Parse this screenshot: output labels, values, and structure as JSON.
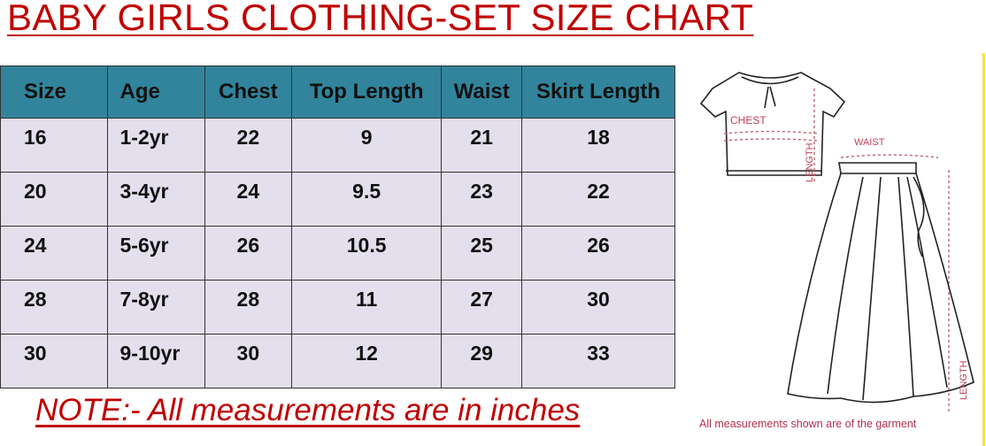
{
  "title": "BABY GIRLS CLOTHING-SET SIZE CHART",
  "table": {
    "headers": [
      "Size",
      "Age",
      "Chest",
      "Top Length",
      "Waist",
      "Skirt Length"
    ],
    "rows": [
      [
        "16",
        "1-2yr",
        "22",
        "9",
        "21",
        "18"
      ],
      [
        "20",
        "3-4yr",
        "24",
        "9.5",
        "23",
        "22"
      ],
      [
        "24",
        "5-6yr",
        "26",
        "10.5",
        "25",
        "26"
      ],
      [
        "28",
        "7-8yr",
        "28",
        "11",
        "27",
        "30"
      ],
      [
        "30",
        "9-10yr",
        "30",
        "12",
        "29",
        "33"
      ]
    ]
  },
  "note": "NOTE:- All measurements are in inches",
  "illustration": {
    "chest_label": "CHEST",
    "top_length_label": "LENGTH",
    "waist_label": "WAIST",
    "skirt_length_label": "LENGTH",
    "caption": "All measurements shown are of the garment"
  },
  "colors": {
    "title": "#c00000",
    "header_bg": "#31849b",
    "row_bg": "#e4dfec",
    "label": "#c0405a"
  }
}
